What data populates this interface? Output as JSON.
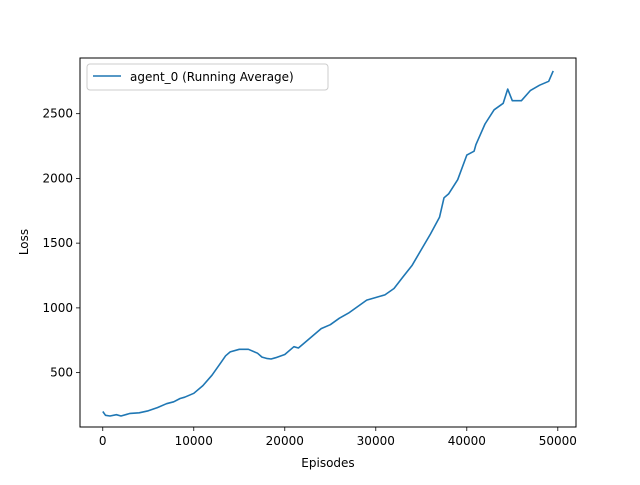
{
  "chart_data": {
    "type": "line",
    "title": "",
    "xlabel": "Episodes",
    "ylabel": "Loss",
    "xlim": [
      -2500,
      52000
    ],
    "ylim": [
      80,
      2930
    ],
    "xticks": [
      0,
      10000,
      20000,
      30000,
      40000,
      50000
    ],
    "yticks": [
      500,
      1000,
      1500,
      2000,
      2500
    ],
    "grid": false,
    "legend_position": "top-left",
    "series": [
      {
        "name": "agent_0 (Running Average)",
        "color": "#1f77b4",
        "x": [
          0,
          300,
          800,
          1500,
          2000,
          3000,
          4000,
          5000,
          6000,
          7000,
          7800,
          8500,
          9000,
          10000,
          11000,
          12000,
          13000,
          13500,
          14000,
          15000,
          16000,
          17000,
          17500,
          18000,
          18500,
          19000,
          20000,
          21000,
          21500,
          22000,
          23000,
          24000,
          25000,
          26000,
          27000,
          28000,
          29000,
          30000,
          31000,
          32000,
          33000,
          34000,
          35000,
          36000,
          37000,
          37500,
          38000,
          39000,
          40000,
          40800,
          41000,
          42000,
          43000,
          44000,
          44500,
          45000,
          46000,
          47000,
          48000,
          49000,
          49500
        ],
        "y": [
          200,
          170,
          165,
          175,
          165,
          185,
          190,
          205,
          230,
          260,
          275,
          300,
          310,
          340,
          400,
          480,
          580,
          630,
          660,
          680,
          680,
          650,
          620,
          610,
          605,
          615,
          640,
          700,
          690,
          720,
          780,
          840,
          870,
          920,
          960,
          1010,
          1060,
          1080,
          1100,
          1150,
          1240,
          1330,
          1450,
          1570,
          1700,
          1850,
          1880,
          1990,
          2180,
          2210,
          2260,
          2420,
          2530,
          2580,
          2690,
          2600,
          2600,
          2680,
          2720,
          2750,
          2830
        ]
      }
    ]
  }
}
